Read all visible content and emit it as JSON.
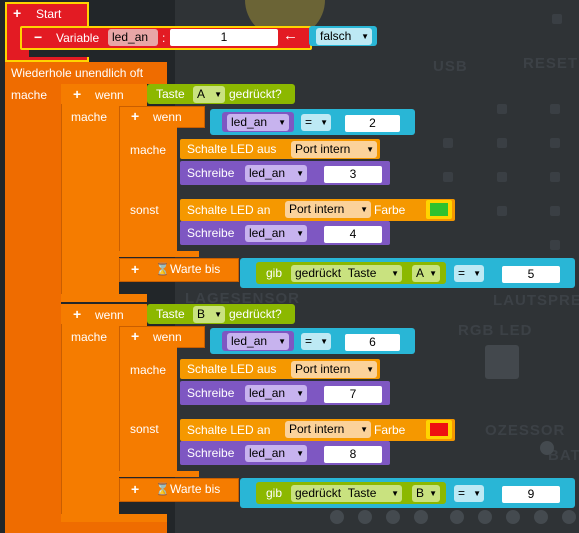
{
  "start": {
    "label": "Start",
    "var_keyword": "Variable",
    "var_name": "led_an",
    "colon": ":",
    "init_value": "1",
    "arrow": "←",
    "bool_value": "falsch"
  },
  "loop": {
    "label": "Wiederhole unendlich oft",
    "mache": "mache"
  },
  "if_a": {
    "wenn": "wenn",
    "taste": "Taste",
    "button": "A",
    "pressed": "gedrückt?",
    "mache": "mache",
    "inner_wenn": "wenn",
    "var": "led_an",
    "op": "=",
    "cmp": "2",
    "mache2": "mache",
    "led_off": "Schalte LED aus",
    "port": "Port intern",
    "schreibe": "Schreibe",
    "var2": "led_an",
    "val_off": "3",
    "sonst": "sonst",
    "led_on": "Schalte LED an",
    "port2": "Port intern",
    "farbe": "Farbe",
    "color": "#2ec22e",
    "schreibe2": "Schreibe",
    "var3": "led_an",
    "val_on": "4",
    "warte": "Warte bis",
    "gib": "gib",
    "gedrueckt": "gedrückt",
    "taste2": "Taste",
    "button2": "A",
    "op2": "=",
    "cmp2": "5"
  },
  "if_b": {
    "wenn": "wenn",
    "taste": "Taste",
    "button": "B",
    "pressed": "gedrückt?",
    "mache": "mache",
    "inner_wenn": "wenn",
    "var": "led_an",
    "op": "=",
    "cmp": "6",
    "mache2": "mache",
    "led_off": "Schalte LED aus",
    "port": "Port intern",
    "schreibe": "Schreibe",
    "var2": "led_an",
    "val_off": "7",
    "sonst": "sonst",
    "led_on": "Schalte LED an",
    "port2": "Port intern",
    "farbe": "Farbe",
    "color": "#ee1111",
    "schreibe2": "Schreibe",
    "var3": "led_an",
    "val_on": "8",
    "warte": "Warte bis",
    "gib": "gib",
    "gedrueckt": "gedrückt",
    "taste2": "Taste",
    "button2": "B",
    "op2": "=",
    "cmp2": "9"
  },
  "board": {
    "usb": "USB",
    "reset": "RESET",
    "lagesensor": "LAGESENSOR",
    "lautsprecher": "LAUTSPREC",
    "rgb_led": "RGB LED",
    "prozessor": "OZESSOR",
    "bat": "BAT"
  },
  "colors": {
    "start": "#e31b23",
    "loop": "#ef6c00",
    "if": "#f57c00",
    "cyan": "#29b6d6",
    "green": "#8cb800",
    "purple": "#7e57c2",
    "led_orange": "#f59800"
  }
}
